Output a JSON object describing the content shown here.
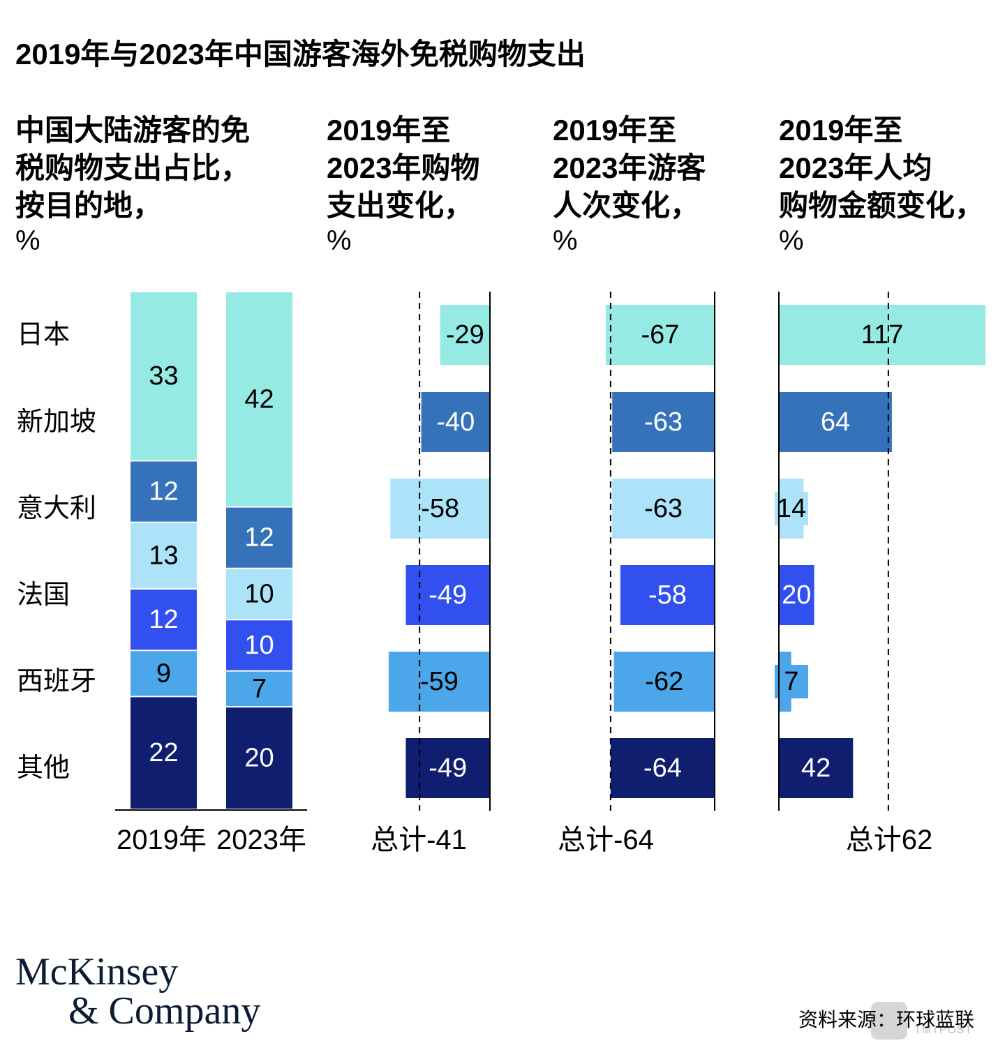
{
  "title": "2019年与2023年中国游客海外免税购物支出",
  "panels": [
    {
      "heading": "中国大陆游客的免\n税购物支出占比，\n按目的地，",
      "unit": "%"
    },
    {
      "heading": "2019年至\n2023年购物\n支出变化，",
      "unit": "%"
    },
    {
      "heading": "2019年至\n2023年游客\n人次变化，",
      "unit": "%"
    },
    {
      "heading": "2019年至\n2023年人均\n购物金额变化，",
      "unit": "%"
    }
  ],
  "colors": {
    "日本": "#95ebe3",
    "新加坡": "#3572b9",
    "意大利": "#ace3f8",
    "法国": "#3250f0",
    "西班牙": "#4ca6ea",
    "其他": "#0f1e6f",
    "axis": "#000000",
    "text_dark": "#000000",
    "text_light": "#ffffff"
  },
  "chart_data": [
    {
      "type": "bar",
      "subtype": "stacked-100",
      "title": "中国大陆游客的免税购物支出占比，按目的地，%",
      "categories": [
        "2019年",
        "2023年"
      ],
      "series": [
        {
          "name": "日本",
          "values": [
            33,
            42
          ]
        },
        {
          "name": "新加坡",
          "values": [
            12,
            12
          ]
        },
        {
          "name": "意大利",
          "values": [
            13,
            10
          ]
        },
        {
          "name": "法国",
          "values": [
            12,
            10
          ]
        },
        {
          "name": "西班牙",
          "values": [
            9,
            7
          ]
        },
        {
          "name": "其他",
          "values": [
            22,
            20
          ]
        }
      ],
      "label_colors": [
        "dark",
        "light",
        "dark",
        "light",
        "dark",
        "light"
      ]
    },
    {
      "type": "bar",
      "orientation": "horizontal",
      "title": "2019年至2023年购物支出变化，%",
      "categories": [
        "日本",
        "新加坡",
        "意大利",
        "法国",
        "西班牙",
        "其他"
      ],
      "values": [
        -29,
        -40,
        -58,
        -49,
        -59,
        -49
      ],
      "labels": [
        "-29",
        "-40",
        "-58",
        "-49",
        "-59",
        "-49"
      ],
      "reference_line": -41,
      "total_label": "总计-41",
      "xlim": [
        -70,
        0
      ]
    },
    {
      "type": "bar",
      "orientation": "horizontal",
      "title": "2019年至2023年游客人次变化，%",
      "categories": [
        "日本",
        "新加坡",
        "意大利",
        "法国",
        "西班牙",
        "其他"
      ],
      "values": [
        -67,
        -63,
        -63,
        -58,
        -62,
        -64
      ],
      "labels": [
        "-67",
        "-63",
        "-63",
        "-58",
        "-62",
        "-64"
      ],
      "reference_line": -64,
      "total_label": "总计-64",
      "xlim": [
        -70,
        0
      ]
    },
    {
      "type": "bar",
      "orientation": "horizontal",
      "title": "2019年至2023年人均购物金额变化，%",
      "categories": [
        "日本",
        "新加坡",
        "意大利",
        "法国",
        "西班牙",
        "其他"
      ],
      "values": [
        117,
        64,
        14,
        20,
        7,
        42
      ],
      "labels": [
        "117",
        "64",
        "14",
        "20",
        "7",
        "42"
      ],
      "reference_line": 62,
      "total_label": "总计62",
      "xlim": [
        0,
        117
      ]
    }
  ],
  "logo": {
    "line1": "McKinsey",
    "line2": "& Company"
  },
  "source": "资料来源：环球蓝联",
  "watermark": "TMTPOST"
}
